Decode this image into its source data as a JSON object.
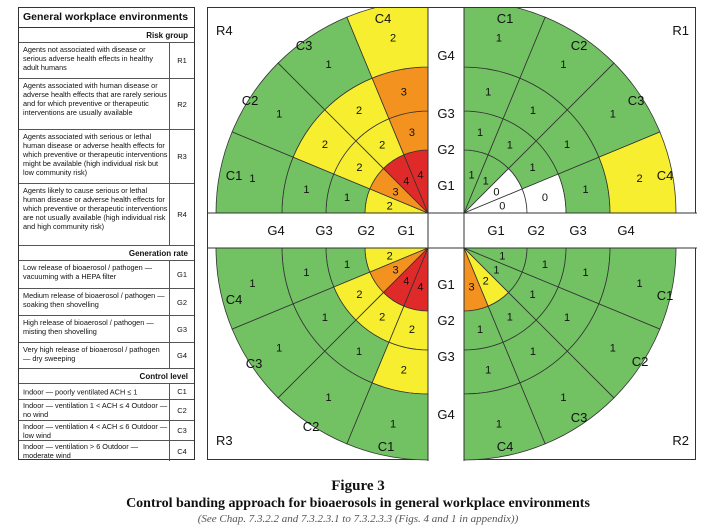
{
  "legend": {
    "title": "General workplace environments",
    "risk_group_heading": "Risk group",
    "risk_groups": [
      {
        "desc": "Agents not associated with disease or serious adverse health effects in healthy adult humans",
        "code": "R1"
      },
      {
        "desc": "Agents associated with human disease or adverse health effects that are rarely serious and for which preventive or therapeutic interventions are usually available",
        "code": "R2"
      },
      {
        "desc": "Agents associated with serious or lethal human disease or adverse health effects for which preventive or therapeutic interventions might be available (high individual risk but low community risk)",
        "code": "R3"
      },
      {
        "desc": "Agents likely to cause serious or lethal human disease or adverse health effects for which preventive or therapeutic interventions are not usually available (high individual risk and high community risk)",
        "code": "R4"
      }
    ],
    "generation_heading": "Generation rate",
    "generation_rates": [
      {
        "desc": "Low release of bioaerosol / pathogen — vacuuming with a HEPA filter",
        "code": "G1"
      },
      {
        "desc": "Medium release of bioaerosol / pathogen — soaking then shovelling",
        "code": "G2"
      },
      {
        "desc": "High release of bioaerosol / pathogen — misting then shovelling",
        "code": "G3"
      },
      {
        "desc": "Very high release of bioaerosol / pathogen — dry sweeping",
        "code": "G4"
      }
    ],
    "control_heading": "Control level",
    "control_levels": [
      {
        "desc": "Indoor — poorly ventilated ACH ≤ 1",
        "code": "C1"
      },
      {
        "desc": "Indoor — ventilation 1 < ACH ≤ 4 Outdoor — no wind",
        "code": "C2"
      },
      {
        "desc": "Indoor — ventilation 4 < ACH ≤ 6 Outdoor — low wind",
        "code": "C3"
      },
      {
        "desc": "Indoor — ventilation > 6 Outdoor — moderate wind",
        "code": "C4"
      }
    ]
  },
  "colors": {
    "0": "#ffffff",
    "1": "#72c163",
    "2": "#f6ee2e",
    "3": "#f3921e",
    "4": "#e02a2a"
  },
  "quadrants": [
    {
      "id": "R1",
      "label": "R1",
      "grid": [
        [
          0,
          0,
          1,
          1
        ],
        [
          0,
          1,
          1,
          1
        ],
        [
          1,
          1,
          1,
          1
        ],
        [
          2,
          1,
          1,
          1
        ]
      ]
    },
    {
      "id": "R2",
      "label": "R2",
      "grid": [
        [
          1,
          1,
          2,
          3
        ],
        [
          1,
          1,
          1,
          1
        ],
        [
          1,
          1,
          1,
          1
        ],
        [
          1,
          1,
          1,
          1
        ]
      ]
    },
    {
      "id": "R3",
      "label": "R3",
      "grid": [
        [
          2,
          3,
          4,
          4
        ],
        [
          1,
          2,
          2,
          2
        ],
        [
          1,
          1,
          1,
          2
        ],
        [
          1,
          1,
          1,
          1
        ]
      ]
    },
    {
      "id": "R4",
      "label": "R4",
      "grid": [
        [
          2,
          3,
          4,
          4
        ],
        [
          1,
          2,
          2,
          3
        ],
        [
          1,
          2,
          2,
          3
        ],
        [
          1,
          1,
          1,
          2
        ]
      ]
    }
  ],
  "axis_labels": {
    "generation": [
      "G1",
      "G2",
      "G3",
      "G4"
    ],
    "control": [
      "C1",
      "C2",
      "C3",
      "C4"
    ]
  },
  "caption": {
    "figure": "Figure 3",
    "title": "Control banding approach for bioaerosols in general workplace environments",
    "source": "(See Chap. 7.3.2.2 and 7.3.2.3.1 to 7.3.2.3.3 (Figs. 4 and 1 in appendix))"
  }
}
